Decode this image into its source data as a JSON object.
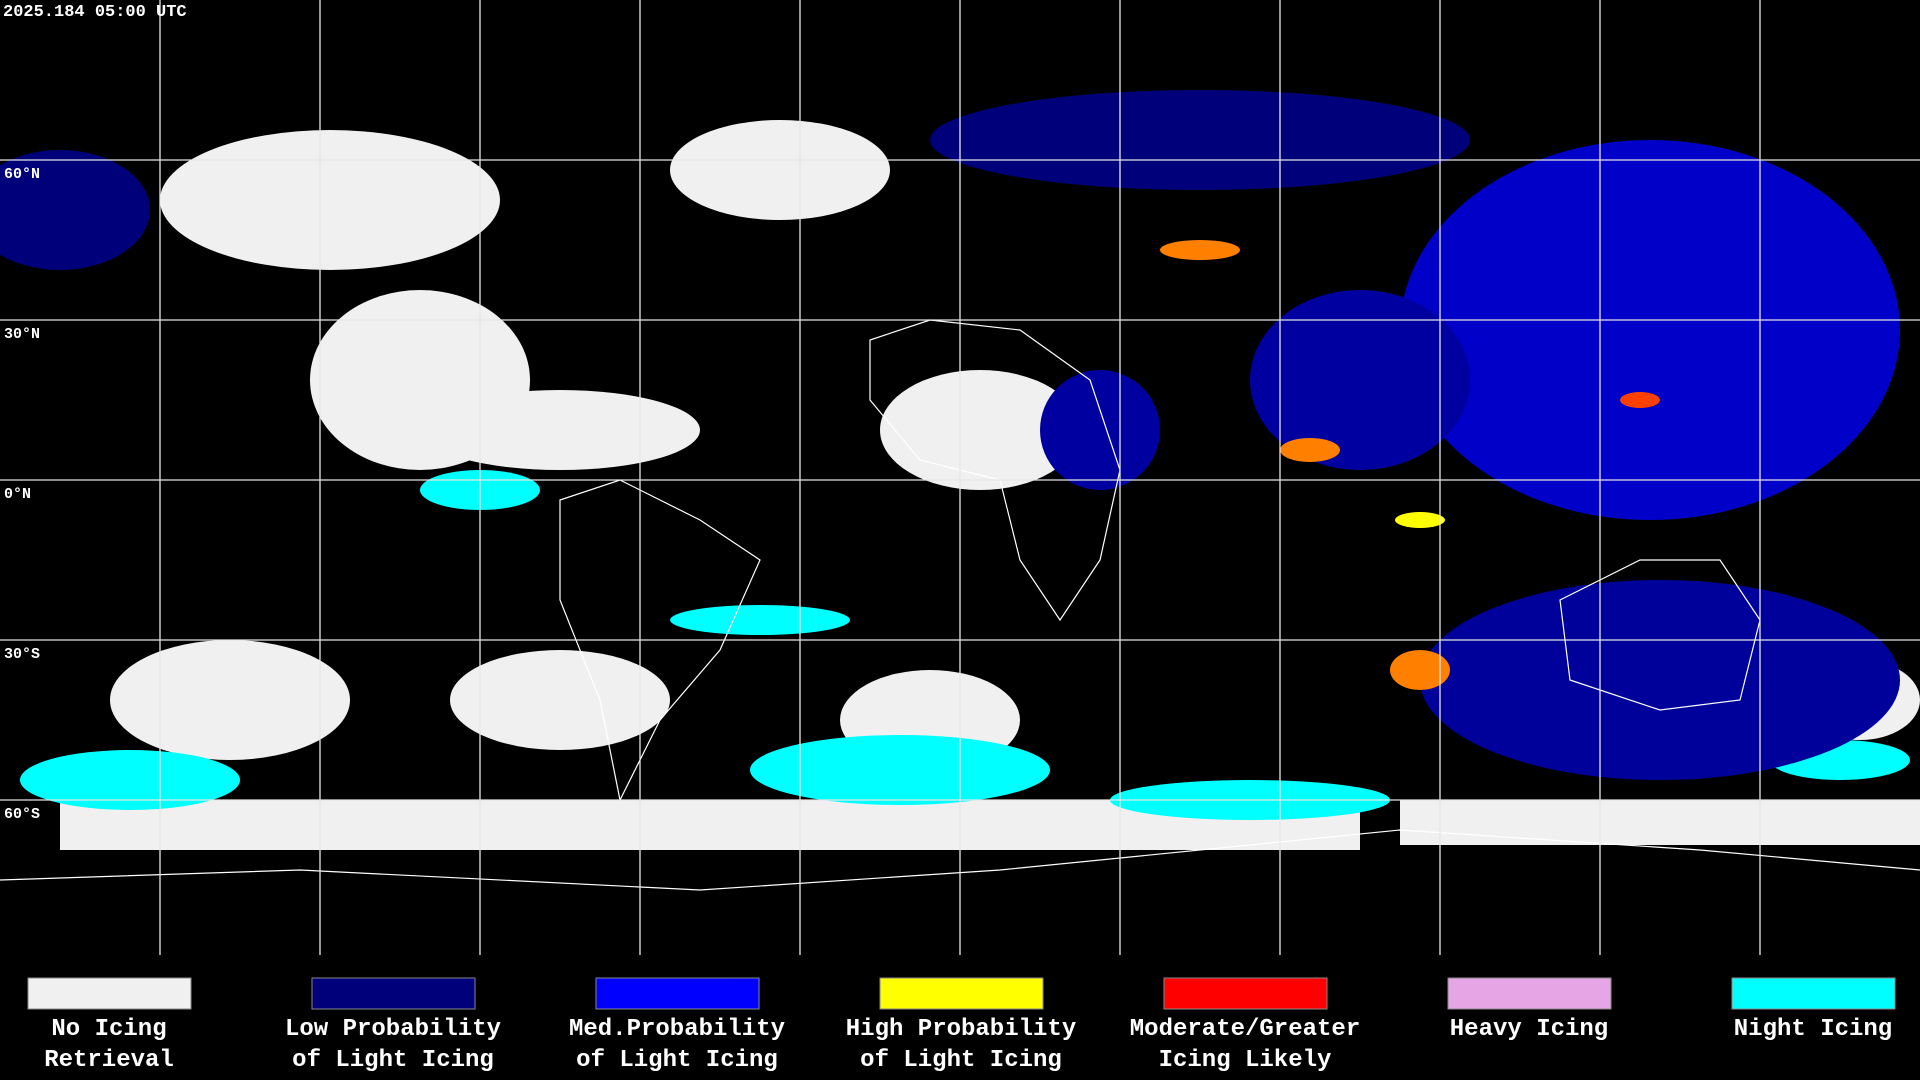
{
  "header": {
    "timestamp": "2025.184 05:00 UTC"
  },
  "map": {
    "latitude_labels": [
      "60°N",
      "30°N",
      "0°N",
      "30°S",
      "60°S"
    ]
  },
  "legend": [
    {
      "label": [
        "No Icing",
        "Retrieval"
      ],
      "color": "#f0f0f0"
    },
    {
      "label": [
        "Low Probability",
        "of Light Icing"
      ],
      "color": "#00007a"
    },
    {
      "label": [
        "Med.Probability",
        "of Light Icing"
      ],
      "color": "#0000ff"
    },
    {
      "label": [
        "High Probability",
        "of Light Icing"
      ],
      "color": "#ffff00"
    },
    {
      "label": [
        "Moderate/Greater",
        "Icing Likely"
      ],
      "color": "#ff0000"
    },
    {
      "label": [
        "Heavy Icing"
      ],
      "color": "#e6a6e6"
    },
    {
      "label": [
        "Night Icing"
      ],
      "color": "#00ffff"
    }
  ]
}
